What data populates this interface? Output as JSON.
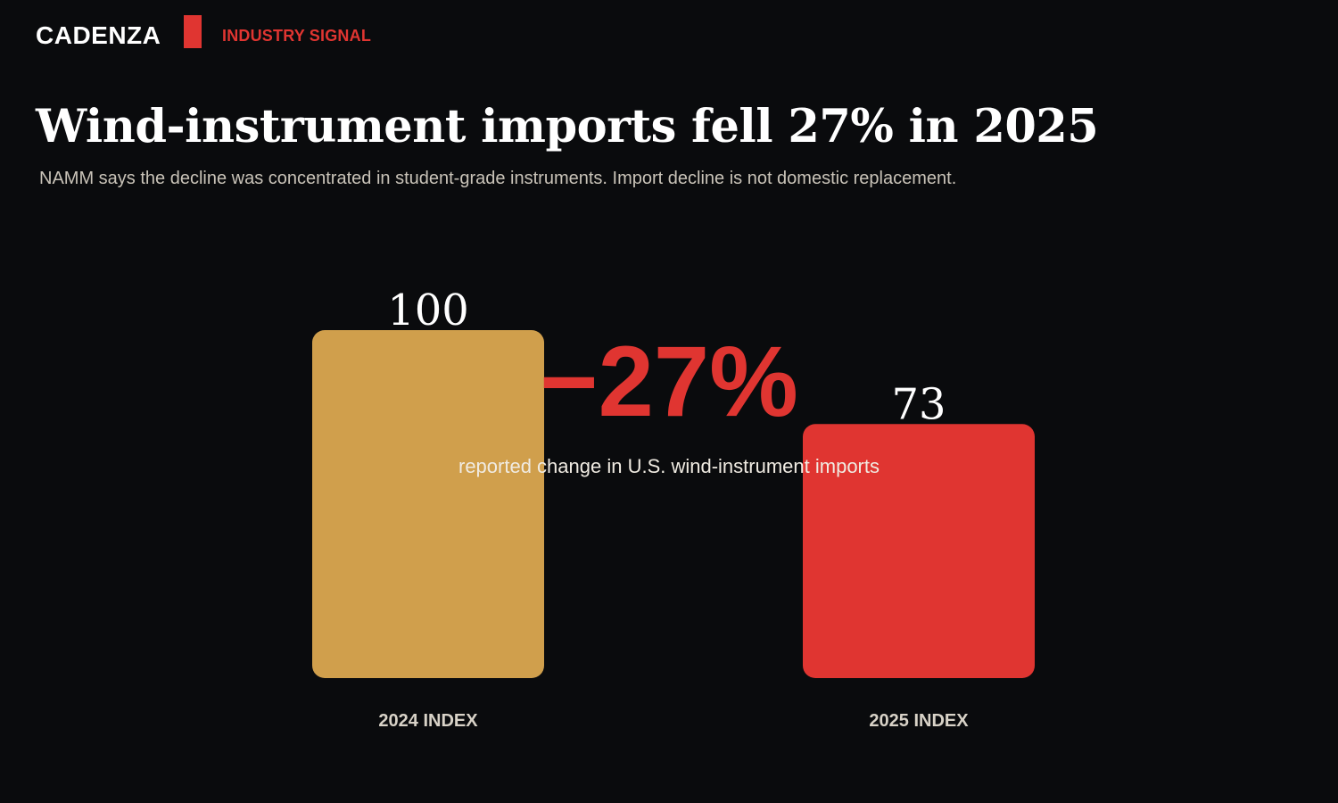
{
  "header": {
    "brand": "CADENZA",
    "kicker": "INDUSTRY SIGNAL"
  },
  "headline": "Wind-instrument imports fell 27% in 2025",
  "dek": "NAMM says the decline was concentrated in student-grade instruments. Import decline is not domestic replacement.",
  "colors": {
    "background": "#0a0b0d",
    "accent": "#e03531",
    "bar_2024": "#d09f4c",
    "bar_2025": "#e03531"
  },
  "chart_data": {
    "type": "bar",
    "categories": [
      "2024 INDEX",
      "2025 INDEX"
    ],
    "values": [
      100,
      73
    ],
    "value_labels": [
      "100",
      "73"
    ],
    "ylim": [
      0,
      100
    ],
    "grid": false,
    "annotation": {
      "figure": "−27%",
      "caption": "reported change in U.S. wind-instrument imports"
    }
  }
}
